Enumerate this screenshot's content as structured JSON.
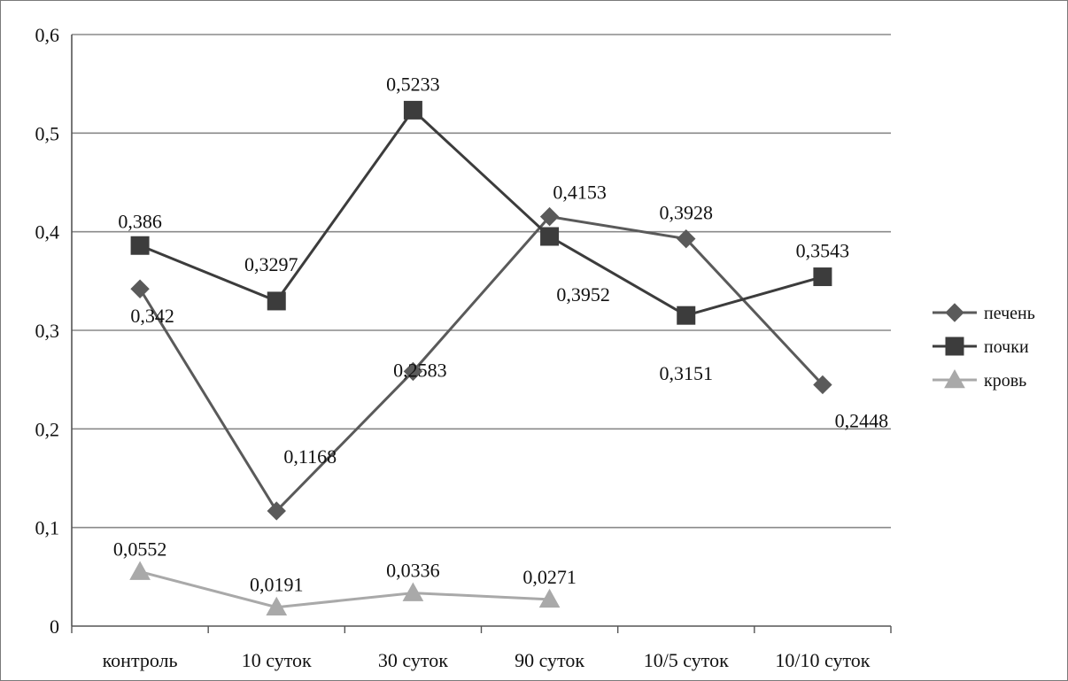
{
  "chart_data": {
    "type": "line",
    "title": "",
    "xlabel": "",
    "ylabel": "",
    "categories": [
      "контроль",
      "10 суток",
      "30 суток",
      "90 суток",
      "10/5 суток",
      "10/10 суток"
    ],
    "ylim": [
      0,
      0.6
    ],
    "yticks": [
      0,
      0.1,
      0.2,
      0.3,
      0.4,
      0.5,
      0.6
    ],
    "ytick_labels": [
      "0",
      "0,1",
      "0,2",
      "0,3",
      "0,4",
      "0,5",
      "0,6"
    ],
    "grid": true,
    "legend_position": "right",
    "series": [
      {
        "name": "печень",
        "marker": "diamond",
        "color": "#5a5a5a",
        "values": [
          0.342,
          0.1168,
          0.2583,
          0.4153,
          0.3928,
          0.2448
        ],
        "labels": [
          "0,342",
          "0,1168",
          "0,2583",
          "0,4153",
          "0,3928",
          "0,2448"
        ]
      },
      {
        "name": "почки",
        "marker": "square",
        "color": "#3c3c3c",
        "values": [
          0.386,
          0.3297,
          0.5233,
          0.3952,
          0.3151,
          0.3543
        ],
        "labels": [
          "0,386",
          "0,3297",
          "0,5233",
          "0,3952",
          "0,3151",
          "0,3543"
        ]
      },
      {
        "name": "кровь",
        "marker": "triangle",
        "color": "#a9a9a9",
        "values": [
          0.0552,
          0.0191,
          0.0336,
          0.0271,
          null,
          null
        ],
        "labels": [
          "0,0552",
          "0,0191",
          "0,0336",
          "0,0271",
          null,
          null
        ]
      }
    ]
  }
}
